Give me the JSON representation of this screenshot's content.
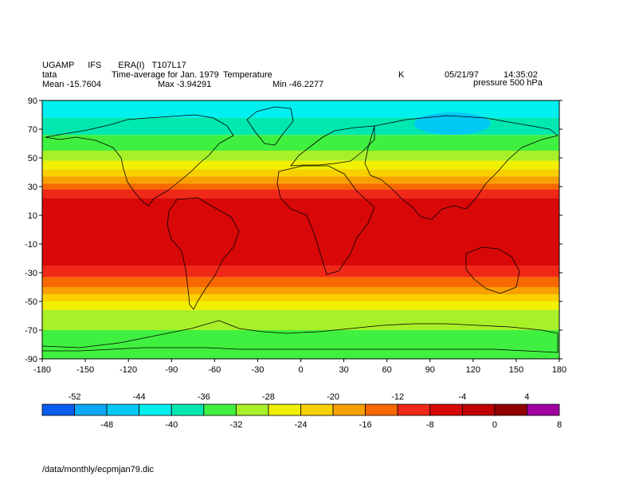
{
  "header": {
    "line1": [
      "UGAMP",
      "IFS",
      "ERA(I)",
      "T107L17"
    ],
    "line2": {
      "name": "tata",
      "desc": "Time-average for Jan. 1979",
      "field": "Temperature",
      "units": "K",
      "date": "05/21/97",
      "time": "14:35:02"
    },
    "line3": {
      "mean": "Mean -15.7604",
      "max": "Max -3.94291",
      "min": "Min -46.2277",
      "level": "pressure 500 hPa"
    }
  },
  "footer": {
    "path": "/data/monthly/ecpmjan79.dic"
  },
  "chart_data": {
    "type": "heatmap",
    "x_ticks": [
      -180,
      -150,
      -120,
      -90,
      -60,
      -30,
      0,
      30,
      60,
      90,
      120,
      150,
      180
    ],
    "y_ticks": [
      90,
      70,
      50,
      30,
      10,
      -10,
      -30,
      -50,
      -70,
      -90
    ],
    "xlim": [
      -180,
      180
    ],
    "ylim": [
      -90,
      90
    ],
    "colorbar": {
      "top_labels": [
        -52,
        -44,
        -36,
        -28,
        -20,
        -12,
        -4,
        4
      ],
      "bottom_labels": [
        -48,
        -40,
        -32,
        -24,
        -16,
        -8,
        0,
        8
      ],
      "bins": [
        {
          "lo": -56,
          "hi": -52,
          "color": "#0a5cf0"
        },
        {
          "lo": -52,
          "hi": -48,
          "color": "#0aa8f5"
        },
        {
          "lo": -48,
          "hi": -44,
          "color": "#00c8f5"
        },
        {
          "lo": -44,
          "hi": -40,
          "color": "#00f0f0"
        },
        {
          "lo": -40,
          "hi": -36,
          "color": "#00e8b0"
        },
        {
          "lo": -36,
          "hi": -32,
          "color": "#40f040"
        },
        {
          "lo": -32,
          "hi": -28,
          "color": "#a8f028"
        },
        {
          "lo": -28,
          "hi": -24,
          "color": "#f0f000"
        },
        {
          "lo": -24,
          "hi": -20,
          "color": "#f8d000"
        },
        {
          "lo": -20,
          "hi": -16,
          "color": "#f8a000"
        },
        {
          "lo": -16,
          "hi": -12,
          "color": "#f86800"
        },
        {
          "lo": -12,
          "hi": -8,
          "color": "#f02818"
        },
        {
          "lo": -8,
          "hi": -4,
          "color": "#d80808"
        },
        {
          "lo": -4,
          "hi": 0,
          "color": "#c00000"
        },
        {
          "lo": 0,
          "hi": 4,
          "color": "#900000"
        },
        {
          "lo": 4,
          "hi": 8,
          "color": "#a000a0"
        }
      ]
    },
    "zonal_bands": [
      {
        "lat_from": 90,
        "lat_to": 78,
        "value": -42
      },
      {
        "lat_from": 78,
        "lat_to": 66,
        "value": -38
      },
      {
        "lat_from": 66,
        "lat_to": 55,
        "value": -34
      },
      {
        "lat_from": 55,
        "lat_to": 48,
        "value": -30
      },
      {
        "lat_from": 48,
        "lat_to": 42,
        "value": -26
      },
      {
        "lat_from": 42,
        "lat_to": 37,
        "value": -22
      },
      {
        "lat_from": 37,
        "lat_to": 32,
        "value": -18
      },
      {
        "lat_from": 32,
        "lat_to": 28,
        "value": -14
      },
      {
        "lat_from": 28,
        "lat_to": 22,
        "value": -10
      },
      {
        "lat_from": 22,
        "lat_to": -25,
        "value": -6
      },
      {
        "lat_from": -25,
        "lat_to": -33,
        "value": -10
      },
      {
        "lat_from": -33,
        "lat_to": -40,
        "value": -14
      },
      {
        "lat_from": -40,
        "lat_to": -45,
        "value": -18
      },
      {
        "lat_from": -45,
        "lat_to": -50,
        "value": -22
      },
      {
        "lat_from": -50,
        "lat_to": -56,
        "value": -26
      },
      {
        "lat_from": -56,
        "lat_to": -70,
        "value": -30
      },
      {
        "lat_from": -70,
        "lat_to": -90,
        "value": -34
      }
    ],
    "cold_pool": {
      "lon": 110,
      "lat": 75,
      "value": -46
    }
  }
}
